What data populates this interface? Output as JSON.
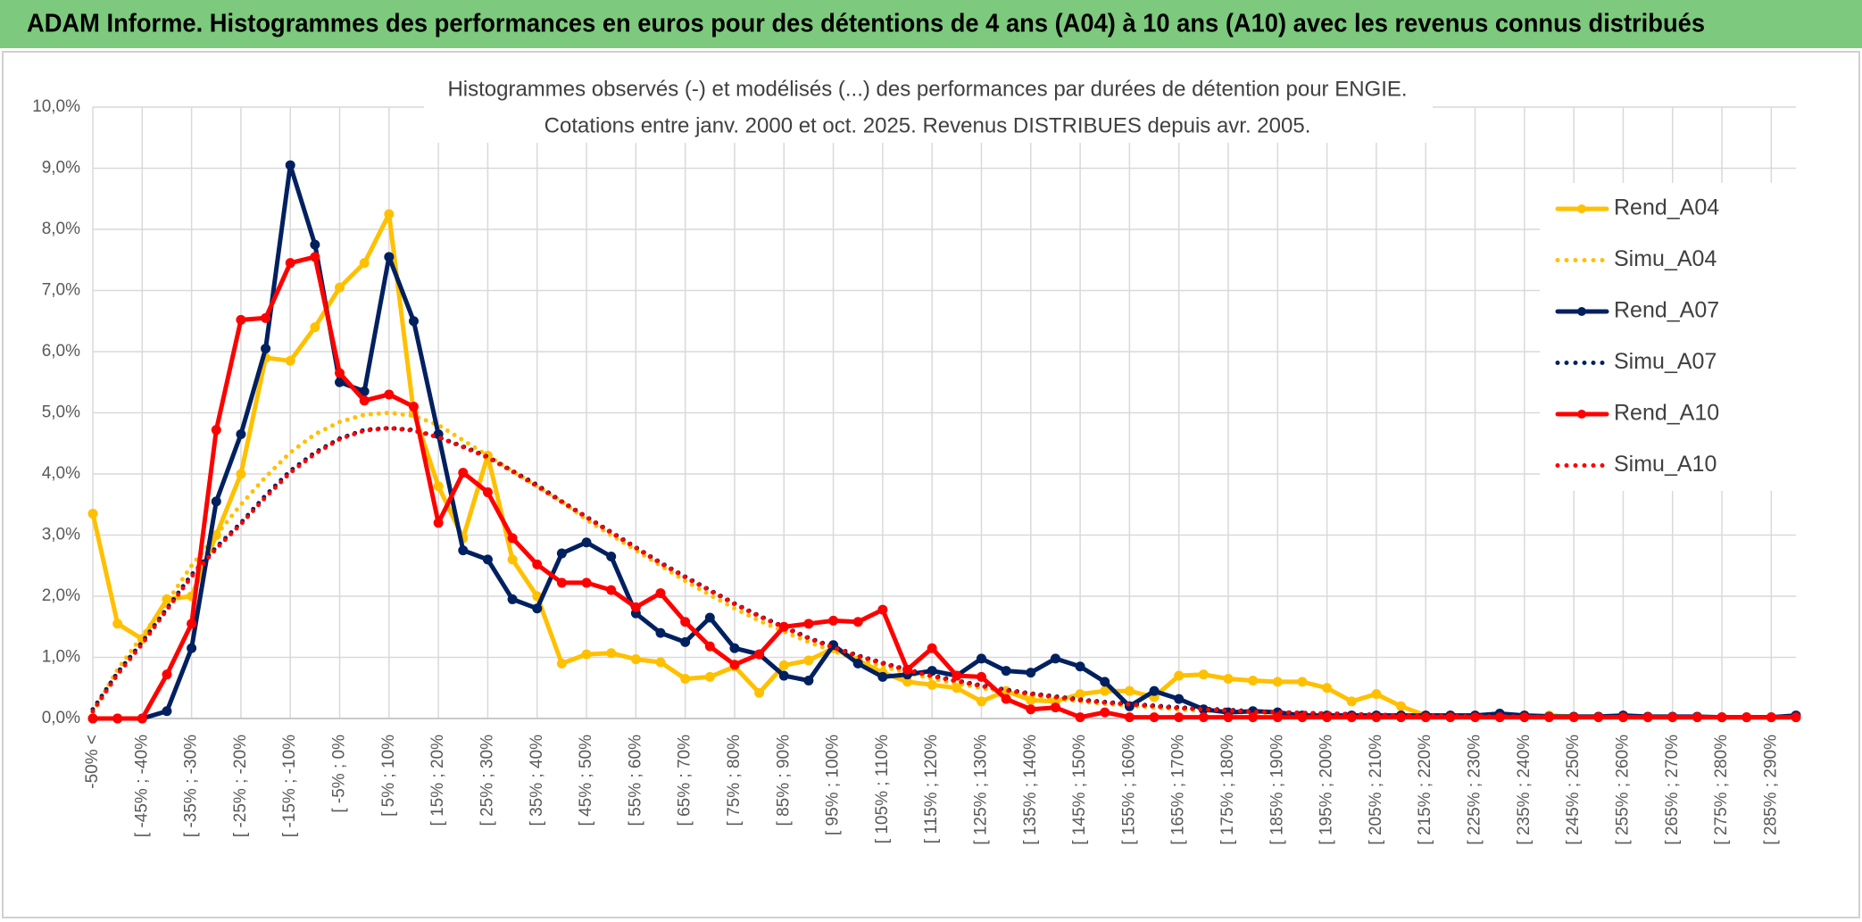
{
  "chart_data": {
    "type": "line",
    "header": "ADAM Informe. Histogrammes des performances en euros pour des détentions de 4 ans (A04) à 10 ans (A10) avec les revenus connus distribués",
    "title": "Histogrammes observés (-) et modélisés (...) des performances par durées de détention pour ENGIE.",
    "subtitle": "Cotations entre janv. 2000 et oct. 2025. Revenus DISTRIBUES depuis avr. 2005.",
    "categories": [
      "-50% <",
      null,
      "[ -45% ; -40%",
      null,
      "[ -35% ; -30%",
      null,
      "[ -25% ; -20%",
      null,
      "[ -15% ; -10%",
      null,
      "[ -5% ; 0%",
      null,
      "[ 5% ; 10%",
      null,
      "[ 15% ; 20%",
      null,
      "[ 25% ; 30%",
      null,
      "[ 35% ; 40%",
      null,
      "[ 45% ; 50%",
      null,
      "[ 55% ; 60%",
      null,
      "[ 65% ; 70%",
      null,
      "[ 75% ; 80%",
      null,
      "[ 85% ; 90%",
      null,
      "[ 95% ; 100%",
      null,
      "[ 105% ; 110%",
      null,
      "[ 115% ; 120%",
      null,
      "[ 125% ; 130%",
      null,
      "[ 135% ; 140%",
      null,
      "[ 145% ; 150%",
      null,
      "[ 155% ; 160%",
      null,
      "[ 165% ; 170%",
      null,
      "[ 175% ; 180%",
      null,
      "[ 185% ; 190%",
      null,
      "[ 195% ; 200%",
      null,
      "[ 205% ; 210%",
      null,
      "[ 215% ; 220%",
      null,
      "[ 225% ; 230%",
      null,
      "[ 235% ; 240%",
      null,
      "[ 245% ; 250%",
      null,
      "[ 255% ; 260%",
      null,
      "[ 265% ; 270%",
      null,
      "[ 275% ; 280%",
      null,
      "[ 285% ; 290%",
      null
    ],
    "ylim": [
      0,
      10
    ],
    "yticks": [
      {
        "value": 0,
        "label": "0,0%"
      },
      {
        "value": 1,
        "label": "1,0%"
      },
      {
        "value": 2,
        "label": "2,0%"
      },
      {
        "value": 3,
        "label": "3,0%"
      },
      {
        "value": 4,
        "label": "4,0%"
      },
      {
        "value": 5,
        "label": "5,0%"
      },
      {
        "value": 6,
        "label": "6,0%"
      },
      {
        "value": 7,
        "label": "7,0%"
      },
      {
        "value": 8,
        "label": "8,0%"
      },
      {
        "value": 9,
        "label": "9,0%"
      },
      {
        "value": 10,
        "label": "10,0%"
      }
    ],
    "grid": true,
    "legend": "right",
    "series": [
      {
        "name": "Rend_A04",
        "color": "#ffc000",
        "style": "solid",
        "markers": true,
        "values": [
          3.35,
          1.55,
          1.3,
          1.95,
          2.0,
          3.0,
          4.0,
          5.9,
          5.85,
          6.4,
          7.05,
          7.45,
          8.25,
          5.0,
          3.8,
          2.95,
          4.3,
          2.6,
          2.0,
          0.9,
          1.05,
          1.07,
          0.97,
          0.92,
          0.65,
          0.68,
          0.85,
          0.42,
          0.87,
          0.95,
          1.15,
          0.95,
          0.75,
          0.6,
          0.55,
          0.5,
          0.28,
          0.45,
          0.3,
          0.28,
          0.4,
          0.45,
          0.45,
          0.35,
          0.7,
          0.72,
          0.65,
          0.62,
          0.6,
          0.6,
          0.5,
          0.28,
          0.4,
          0.2,
          0.05,
          0.05,
          0.05,
          0.05,
          0.05,
          0.05,
          0.03,
          0.03,
          0.02,
          0.02,
          0.02,
          0.02,
          0.02,
          0.02,
          0.02,
          0.02
        ]
      },
      {
        "name": "Simu_A04",
        "color": "#ffc000",
        "style": "dotted",
        "markers": false,
        "values": [
          0.1,
          0.8,
          1.35,
          1.9,
          2.5,
          3.0,
          3.5,
          3.95,
          4.35,
          4.65,
          4.85,
          4.97,
          5.0,
          4.95,
          4.8,
          4.55,
          4.3,
          4.05,
          3.8,
          3.55,
          3.25,
          3.0,
          2.75,
          2.5,
          2.25,
          2.02,
          1.8,
          1.6,
          1.42,
          1.25,
          1.1,
          0.97,
          0.85,
          0.75,
          0.65,
          0.57,
          0.5,
          0.43,
          0.38,
          0.33,
          0.28,
          0.24,
          0.21,
          0.18,
          0.15,
          0.13,
          0.11,
          0.1,
          0.08,
          0.07,
          0.06,
          0.05,
          0.045,
          0.04,
          0.035,
          0.03,
          0.03,
          0.025,
          0.02,
          0.02,
          0.02,
          0.02,
          0.02,
          0.02,
          0.02,
          0.02,
          0.02,
          0.02,
          0.02,
          0.02
        ]
      },
      {
        "name": "Rend_A07",
        "color": "#002060",
        "style": "solid",
        "markers": true,
        "values": [
          0,
          0,
          0,
          0.12,
          1.15,
          3.55,
          4.65,
          6.05,
          9.05,
          7.75,
          5.5,
          5.35,
          7.55,
          6.5,
          4.65,
          2.75,
          2.6,
          1.95,
          1.8,
          2.7,
          2.88,
          2.65,
          1.72,
          1.4,
          1.25,
          1.65,
          1.15,
          1.05,
          0.7,
          0.62,
          1.2,
          0.9,
          0.68,
          0.72,
          0.78,
          0.7,
          0.98,
          0.78,
          0.75,
          0.98,
          0.85,
          0.6,
          0.2,
          0.45,
          0.32,
          0.15,
          0.1,
          0.12,
          0.1,
          0.05,
          0.05,
          0.05,
          0.05,
          0.05,
          0.05,
          0.05,
          0.05,
          0.08,
          0.05,
          0.03,
          0.03,
          0.03,
          0.05,
          0.03,
          0.03,
          0.03,
          0.02,
          0.02,
          0.02,
          0.05
        ]
      },
      {
        "name": "Simu_A07",
        "color": "#002060",
        "style": "dotted",
        "markers": false,
        "values": [
          0.15,
          0.75,
          1.25,
          1.8,
          2.35,
          2.8,
          3.2,
          3.65,
          4.05,
          4.35,
          4.58,
          4.72,
          4.75,
          4.72,
          4.6,
          4.45,
          4.28,
          4.05,
          3.82,
          3.55,
          3.3,
          3.05,
          2.8,
          2.55,
          2.32,
          2.1,
          1.88,
          1.68,
          1.5,
          1.32,
          1.17,
          1.03,
          0.91,
          0.8,
          0.7,
          0.62,
          0.54,
          0.47,
          0.41,
          0.36,
          0.31,
          0.27,
          0.24,
          0.21,
          0.18,
          0.16,
          0.14,
          0.12,
          0.1,
          0.09,
          0.08,
          0.07,
          0.06,
          0.05,
          0.045,
          0.04,
          0.035,
          0.03,
          0.03,
          0.025,
          0.02,
          0.02,
          0.02,
          0.02,
          0.02,
          0.02,
          0.02,
          0.02,
          0.02,
          0.02
        ]
      },
      {
        "name": "Rend_A10",
        "color": "#ff0000",
        "style": "solid",
        "markers": true,
        "values": [
          0,
          0,
          0,
          0.72,
          1.55,
          4.72,
          6.52,
          6.55,
          7.45,
          7.55,
          5.65,
          5.2,
          5.3,
          5.1,
          3.2,
          4.02,
          3.7,
          2.95,
          2.52,
          2.22,
          2.22,
          2.1,
          1.82,
          2.05,
          1.58,
          1.18,
          0.88,
          1.05,
          1.5,
          1.55,
          1.6,
          1.58,
          1.78,
          0.8,
          1.15,
          0.7,
          0.68,
          0.32,
          0.15,
          0.18,
          0.02,
          0.1,
          0.02,
          0.02,
          0.02,
          0.02,
          0.02,
          0.02,
          0.02,
          0.02,
          0.02,
          0.02,
          0.02,
          0.02,
          0.02,
          0.02,
          0.02,
          0.02,
          0.02,
          0.02,
          0.02,
          0.02,
          0.02,
          0.02,
          0.02,
          0.02,
          0.02,
          0.02,
          0.02,
          0.02
        ]
      },
      {
        "name": "Simu_A10",
        "color": "#ff0000",
        "style": "dotted",
        "markers": false,
        "values": [
          0.12,
          0.72,
          1.22,
          1.78,
          2.32,
          2.78,
          3.18,
          3.62,
          4.02,
          4.33,
          4.57,
          4.71,
          4.75,
          4.71,
          4.6,
          4.44,
          4.27,
          4.04,
          3.8,
          3.54,
          3.29,
          3.04,
          2.79,
          2.54,
          2.31,
          2.09,
          1.87,
          1.67,
          1.49,
          1.31,
          1.16,
          1.02,
          0.9,
          0.79,
          0.69,
          0.61,
          0.53,
          0.46,
          0.4,
          0.35,
          0.3,
          0.26,
          0.23,
          0.2,
          0.17,
          0.15,
          0.13,
          0.11,
          0.1,
          0.09,
          0.08,
          0.07,
          0.06,
          0.05,
          0.045,
          0.04,
          0.035,
          0.03,
          0.03,
          0.025,
          0.02,
          0.02,
          0.02,
          0.02,
          0.02,
          0.02,
          0.02,
          0.02,
          0.02,
          0.02
        ]
      }
    ]
  }
}
